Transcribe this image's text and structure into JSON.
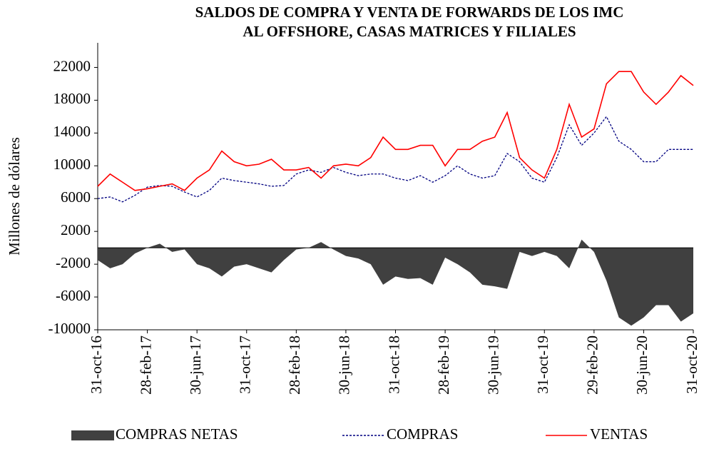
{
  "chart_data": {
    "type": "line",
    "title": [
      "SALDOS DE COMPRA Y VENTA DE FORWARDS DE LOS IMC",
      "AL OFFSHORE, CASAS MATRICES Y FILIALES"
    ],
    "ylabel": "Millones de dólares",
    "categories": [
      "31-oct-16",
      null,
      null,
      null,
      "28-feb-17",
      null,
      null,
      null,
      "30-jun-17",
      null,
      null,
      null,
      "31-oct-17",
      null,
      null,
      null,
      "28-feb-18",
      null,
      null,
      null,
      "30-jun-18",
      null,
      null,
      null,
      "31-oct-18",
      null,
      null,
      null,
      "28-feb-19",
      null,
      null,
      null,
      "30-jun-19",
      null,
      null,
      null,
      "31-oct-19",
      null,
      null,
      null,
      "29-feb-20",
      null,
      null,
      null,
      "30-jun-20",
      null,
      null,
      null,
      "31-oct-20"
    ],
    "series": [
      {
        "name": "COMPRAS NETAS",
        "color": "#404040",
        "style": "area",
        "values": [
          -1500,
          -2500,
          -2000,
          -700,
          0,
          500,
          -500,
          -200,
          -2000,
          -2500,
          -3500,
          -2300,
          -2000,
          -2500,
          -3000,
          -1500,
          -200,
          0,
          700,
          -200,
          -1000,
          -1300,
          -2000,
          -4500,
          -3500,
          -3800,
          -3700,
          -4500,
          -1200,
          -2000,
          -3000,
          -4500,
          -4700,
          -5000,
          -500,
          -1000,
          -500,
          -1000,
          -2500,
          1000,
          -500,
          -4000,
          -8500,
          -9500,
          -8500,
          -7000,
          -7000,
          -9000,
          -8000
        ]
      },
      {
        "name": "COMPRAS",
        "color": "#000080",
        "style": "dashed",
        "values": [
          6000,
          6200,
          5600,
          6400,
          7400,
          7600,
          7500,
          6800,
          6200,
          7000,
          8500,
          8200,
          8000,
          7800,
          7500,
          7600,
          9000,
          9500,
          9200,
          9800,
          9200,
          8800,
          9000,
          9000,
          8500,
          8200,
          8800,
          8000,
          8800,
          10000,
          9000,
          8500,
          8800,
          11500,
          10500,
          8500,
          8000,
          11000,
          15000,
          12500,
          14000,
          16000,
          13000,
          12000,
          10500,
          10500,
          12000,
          12000,
          12000
        ]
      },
      {
        "name": "VENTAS",
        "color": "#ff0000",
        "style": "solid",
        "values": [
          7500,
          9000,
          8000,
          7000,
          7200,
          7500,
          7800,
          7000,
          8500,
          9500,
          11800,
          10500,
          10000,
          10200,
          10800,
          9500,
          9500,
          9800,
          8500,
          10000,
          10200,
          10000,
          11000,
          13500,
          12000,
          12000,
          12500,
          12500,
          10000,
          12000,
          12000,
          13000,
          13500,
          16500,
          11000,
          9500,
          8500,
          12000,
          17500,
          13500,
          14500,
          20000,
          21500,
          21500,
          19000,
          17500,
          19000,
          21000,
          19800
        ]
      }
    ],
    "ylim": [
      -10000,
      25000
    ],
    "yticks": [
      -10000,
      -6000,
      -2000,
      2000,
      6000,
      10000,
      14000,
      18000,
      22000
    ],
    "legend": "bottom"
  }
}
